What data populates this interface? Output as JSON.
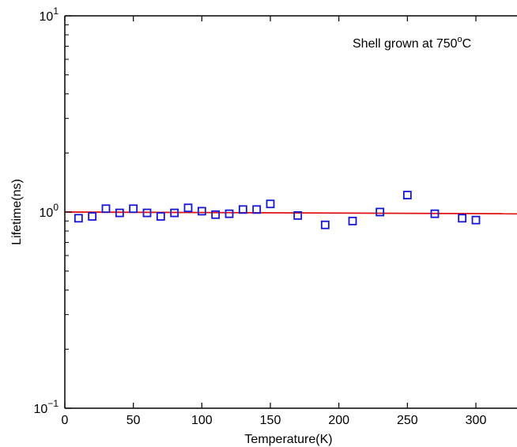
{
  "chart_data": {
    "type": "scatter",
    "title": "",
    "xlabel": "Temperature(K)",
    "ylabel": "Lifetime(ns)",
    "xlim": [
      0,
      330
    ],
    "ylim": [
      0.1,
      10
    ],
    "yscale": "log",
    "grid": false,
    "box": true,
    "x_ticks": [
      0,
      50,
      100,
      150,
      200,
      250,
      300
    ],
    "x_tick_labels": [
      "0",
      "50",
      "100",
      "150",
      "200",
      "250",
      "300"
    ],
    "y_ticks": [
      0.1,
      1,
      10
    ],
    "y_tick_labels": [
      {
        "base": "10",
        "exp": "−1"
      },
      {
        "base": "10",
        "exp": "0"
      },
      {
        "base": "10",
        "exp": "1"
      }
    ],
    "annotation": {
      "text": "Shell grown at 750",
      "sup": "o",
      "suffix": "C"
    },
    "series": [
      {
        "marker": "square",
        "color": "#1515d6",
        "x": [
          10,
          20,
          30,
          40,
          50,
          60,
          70,
          80,
          90,
          100,
          110,
          120,
          130,
          140,
          150,
          170,
          190,
          210,
          230,
          250,
          270,
          290,
          300
        ],
        "y": [
          0.93,
          0.95,
          1.04,
          0.99,
          1.04,
          0.99,
          0.95,
          0.99,
          1.05,
          1.01,
          0.97,
          0.98,
          1.03,
          1.03,
          1.1,
          0.96,
          0.86,
          0.9,
          1.0,
          1.22,
          0.98,
          0.93,
          0.91
        ]
      },
      {
        "type": "line",
        "color": "#e01010",
        "x": [
          0,
          330
        ],
        "y": [
          1.0,
          0.98
        ]
      }
    ]
  }
}
